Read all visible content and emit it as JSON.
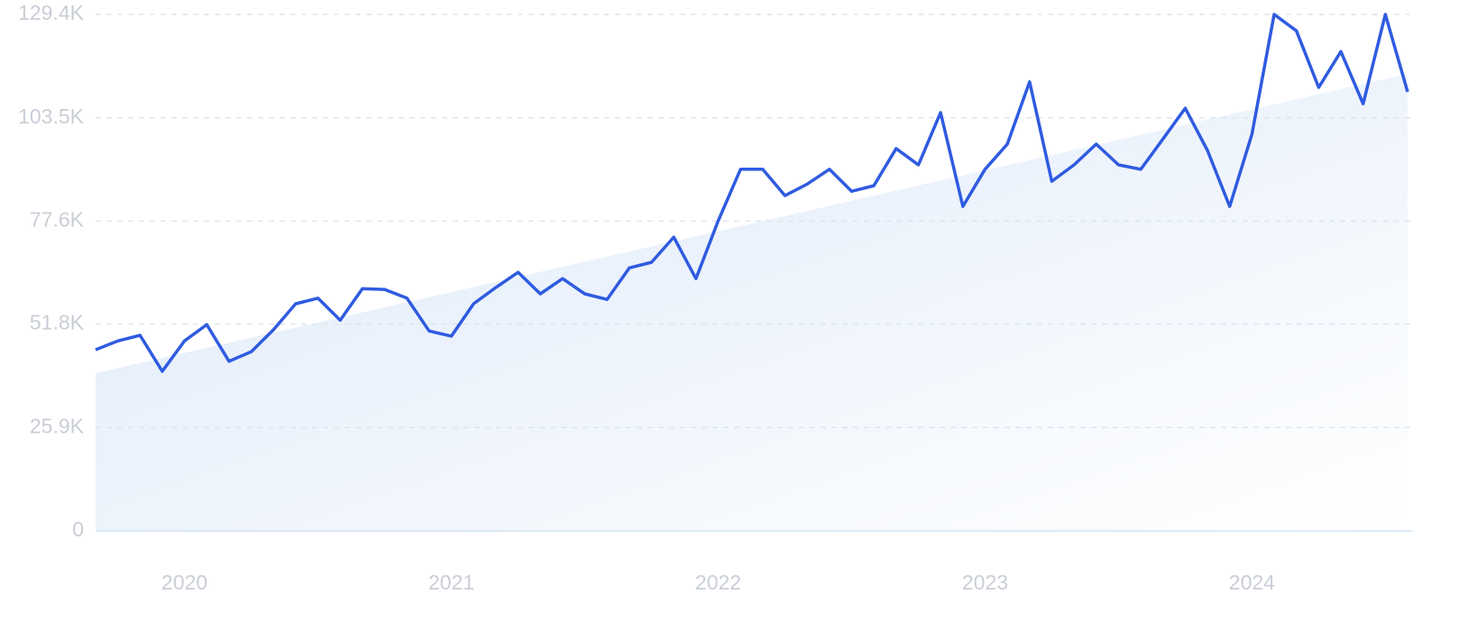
{
  "chart_data": {
    "type": "line",
    "categories": [
      null,
      null,
      null,
      null,
      "2020",
      null,
      null,
      null,
      null,
      null,
      null,
      null,
      null,
      null,
      null,
      null,
      "2021",
      null,
      null,
      null,
      null,
      null,
      null,
      null,
      null,
      null,
      null,
      null,
      "2022",
      null,
      null,
      null,
      null,
      null,
      null,
      null,
      null,
      null,
      null,
      null,
      "2023",
      null,
      null,
      null,
      null,
      null,
      null,
      null,
      null,
      null,
      null,
      null,
      "2024",
      null,
      null,
      null,
      null,
      null,
      null,
      null
    ],
    "series": [
      {
        "color": "#2f5be0",
        "values": [
          45400,
          47600,
          49000,
          40000,
          47600,
          51700,
          42500,
          44900,
          50400,
          56900,
          58300,
          52800,
          60700,
          60500,
          58300,
          50100,
          48800,
          56900,
          61000,
          64800,
          59400,
          63200,
          59400,
          58000,
          65900,
          67300,
          73600,
          63200,
          77700,
          90600,
          90600,
          84000,
          86900,
          90600,
          85100,
          86500,
          95800,
          91700,
          104800,
          81300,
          90600,
          96900,
          112500,
          87600,
          91700,
          96900,
          91700,
          90600,
          98200,
          105900,
          95300,
          81300,
          99400,
          129400,
          125300,
          111100,
          120100,
          107000,
          129400,
          110000
        ]
      }
    ],
    "trend": {
      "color": "#dde9f9",
      "values": [
        39500,
        114500
      ]
    },
    "ylim": [
      0,
      129400
    ],
    "yticks": [
      0,
      {
        "value": 25900,
        "label": "25.9K"
      },
      {
        "value": 51800,
        "label": "51.8K"
      },
      {
        "value": 77600,
        "label": "77.6K"
      },
      {
        "value": 103500,
        "label": "103.5K"
      },
      {
        "value": 129400,
        "label": "129.4K"
      }
    ],
    "grid": true
  }
}
